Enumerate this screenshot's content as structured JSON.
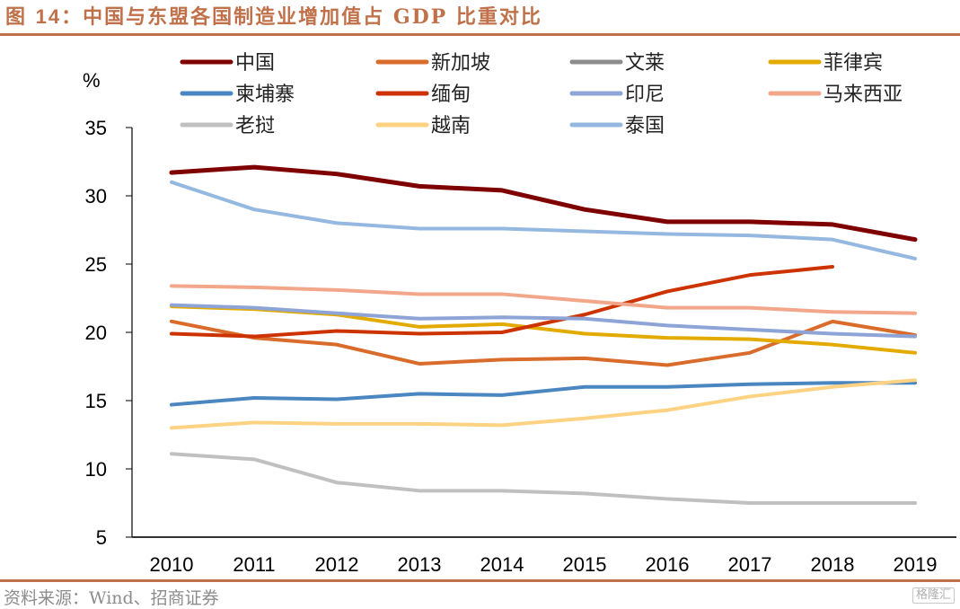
{
  "title": {
    "prefix": "图 ",
    "number": "14",
    "text": "：中国与东盟各国制造业增加值占 GDP 比重对比"
  },
  "source": "资料来源：Wind、招商证券",
  "watermark": "格隆汇",
  "chart_data": {
    "type": "line",
    "title": "图 14：中国与东盟各国制造业增加值占 GDP 比重对比",
    "xlabel": "",
    "ylabel": "%",
    "x": [
      "2010",
      "2011",
      "2012",
      "2013",
      "2014",
      "2015",
      "2016",
      "2017",
      "2018",
      "2019"
    ],
    "ylim": [
      5,
      35
    ],
    "yticks": [
      5,
      10,
      15,
      20,
      25,
      30,
      35
    ],
    "grid": false,
    "legend_position": "top",
    "series": [
      {
        "name": "中国",
        "color": "#7f0000",
        "values": [
          31.7,
          32.1,
          31.6,
          30.7,
          30.4,
          29.0,
          28.1,
          28.1,
          27.9,
          26.8
        ]
      },
      {
        "name": "新加坡",
        "color": "#d96b2b",
        "values": [
          20.8,
          19.6,
          19.1,
          17.7,
          18.0,
          18.1,
          17.6,
          18.5,
          20.8,
          19.8
        ]
      },
      {
        "name": "文莱",
        "color": "#8c8c8c",
        "values": [
          null,
          null,
          null,
          null,
          null,
          null,
          null,
          null,
          null,
          null
        ]
      },
      {
        "name": "菲律宾",
        "color": "#e3aa00",
        "values": [
          21.9,
          21.7,
          21.3,
          20.4,
          20.6,
          19.9,
          19.6,
          19.5,
          19.1,
          18.5
        ]
      },
      {
        "name": "柬埔寨",
        "color": "#4a86bf",
        "values": [
          14.7,
          15.2,
          15.1,
          15.5,
          15.4,
          16.0,
          16.0,
          16.2,
          16.3,
          16.3
        ]
      },
      {
        "name": "缅甸",
        "color": "#cc3300",
        "values": [
          19.9,
          19.7,
          20.1,
          19.9,
          20.0,
          21.3,
          23.0,
          24.2,
          24.8,
          null
        ]
      },
      {
        "name": "印尼",
        "color": "#8ea3d6",
        "values": [
          22.0,
          21.8,
          21.4,
          21.0,
          21.1,
          21.0,
          20.5,
          20.2,
          19.9,
          19.7
        ]
      },
      {
        "name": "马来西亚",
        "color": "#f2a68a",
        "values": [
          23.4,
          23.3,
          23.1,
          22.8,
          22.8,
          22.3,
          21.8,
          21.8,
          21.5,
          21.4
        ]
      },
      {
        "name": "老挝",
        "color": "#c0c0c0",
        "values": [
          11.1,
          10.7,
          9.0,
          8.4,
          8.4,
          8.2,
          7.8,
          7.5,
          7.5,
          7.5
        ]
      },
      {
        "name": "越南",
        "color": "#fdd282",
        "values": [
          13.0,
          13.4,
          13.3,
          13.3,
          13.2,
          13.7,
          14.3,
          15.3,
          16.0,
          16.5
        ]
      },
      {
        "name": "泰国",
        "color": "#94b8e0",
        "values": [
          31.0,
          29.0,
          28.0,
          27.6,
          27.6,
          27.4,
          27.2,
          27.1,
          26.8,
          25.4
        ]
      }
    ]
  }
}
